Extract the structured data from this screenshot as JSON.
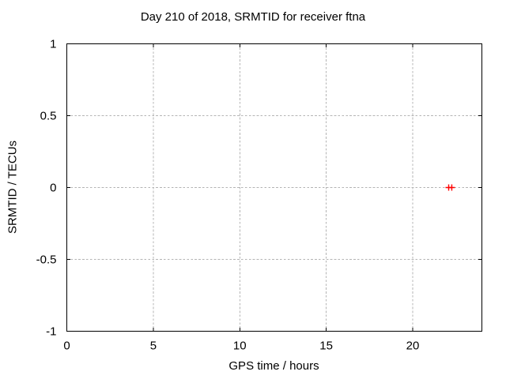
{
  "colors": {
    "background": "#ffffff",
    "text": "#000000",
    "axis": "#000000",
    "grid": "#b4b4b4",
    "marker": "#ff0000"
  },
  "chart_data": {
    "type": "scatter",
    "title": "Day 210 of 2018, SRMTID for receiver ftna",
    "xlabel": "GPS time / hours",
    "ylabel": "SRMTID / TECUs",
    "xlim": [
      0,
      24
    ],
    "ylim": [
      -1,
      1
    ],
    "xticks": [
      0,
      5,
      10,
      15,
      20
    ],
    "yticks": [
      -1,
      -0.5,
      0,
      0.5,
      1
    ],
    "grid": true,
    "grid_style": "dashed",
    "legend": "none",
    "series": [
      {
        "name": "SRMTID",
        "marker": "plus",
        "color": "#ff0000",
        "points": [
          {
            "x": 22.08,
            "y": 0
          },
          {
            "x": 22.26,
            "y": 0
          }
        ]
      }
    ]
  }
}
